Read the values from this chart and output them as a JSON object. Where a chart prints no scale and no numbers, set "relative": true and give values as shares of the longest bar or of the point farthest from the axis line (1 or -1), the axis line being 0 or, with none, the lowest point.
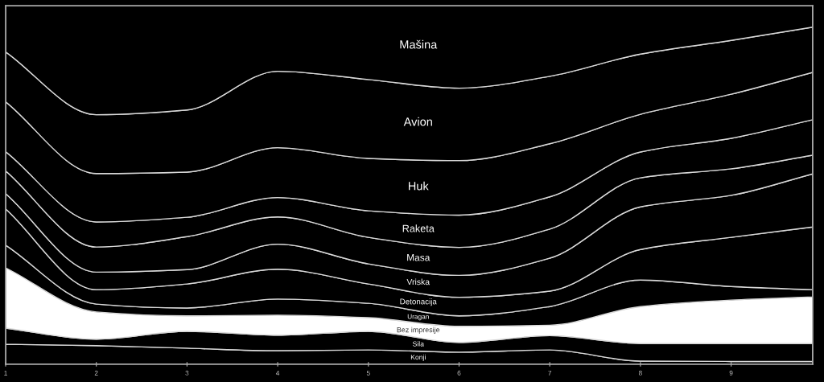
{
  "chart_data": {
    "type": "area",
    "stacked": true,
    "relative": true,
    "x": [
      1,
      2,
      3,
      4,
      5,
      6,
      7,
      8,
      9,
      9.9
    ],
    "xlim": [
      1,
      9.9
    ],
    "xticks": [
      1,
      2,
      3,
      4,
      5,
      6,
      7,
      8,
      9
    ],
    "series": [
      {
        "name": "Konji",
        "color": "#000000",
        "values": [
          0.056,
          0.052,
          0.045,
          0.038,
          0.04,
          0.034,
          0.04,
          0.009,
          0.008,
          0.008
        ]
      },
      {
        "name": "Sila",
        "color": "#000000",
        "values": [
          0.045,
          0.018,
          0.047,
          0.043,
          0.052,
          0.027,
          0.04,
          0.049,
          0.05,
          0.05
        ]
      },
      {
        "name": "Bez impresije",
        "color": "#ffffff",
        "values": [
          0.168,
          0.076,
          0.043,
          0.056,
          0.038,
          0.045,
          0.029,
          0.103,
          0.121,
          0.13
        ]
      },
      {
        "name": "Uragan",
        "color": "#000000",
        "values": [
          0.063,
          0.022,
          0.022,
          0.045,
          0.04,
          0.029,
          0.052,
          0.074,
          0.038,
          0.02
        ]
      },
      {
        "name": "Detonacija",
        "color": "#000000",
        "values": [
          0.101,
          0.04,
          0.067,
          0.083,
          0.054,
          0.052,
          0.043,
          0.085,
          0.137,
          0.175
        ]
      },
      {
        "name": "Vriska",
        "color": "#000000",
        "values": [
          0.043,
          0.049,
          0.04,
          0.07,
          0.056,
          0.061,
          0.092,
          0.119,
          0.117,
          0.148
        ]
      },
      {
        "name": "Masa",
        "color": "#000000",
        "values": [
          0.063,
          0.07,
          0.092,
          0.076,
          0.074,
          0.078,
          0.081,
          0.081,
          0.074,
          0.052
        ]
      },
      {
        "name": "Raketa",
        "color": "#000000",
        "values": [
          0.054,
          0.07,
          0.054,
          0.054,
          0.074,
          0.09,
          0.09,
          0.072,
          0.085,
          0.099
        ]
      },
      {
        "name": "Huk",
        "color": "#000000",
        "values": [
          0.139,
          0.135,
          0.126,
          0.139,
          0.146,
          0.152,
          0.148,
          0.105,
          0.123,
          0.132
        ]
      },
      {
        "name": "Avion",
        "color": "#000000",
        "values": [
          0.139,
          0.164,
          0.173,
          0.213,
          0.22,
          0.202,
          0.188,
          0.168,
          0.15,
          0.126
        ]
      },
      {
        "name": "Mašina",
        "color": "#000000",
        "values": [
          0.129,
          0.304,
          0.291,
          0.183,
          0.206,
          0.23,
          0.197,
          0.135,
          0.097,
          0.06
        ]
      }
    ]
  }
}
